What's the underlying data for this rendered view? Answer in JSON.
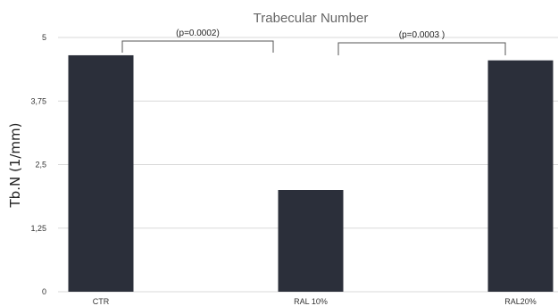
{
  "chart_data": {
    "type": "bar",
    "title": "Trabecular Number",
    "xlabel": "",
    "ylabel": "Tb.N  (1/mm)",
    "categories": [
      "CTR",
      "RAL 10%",
      "RAL20%"
    ],
    "values": [
      4.65,
      2.0,
      4.55
    ],
    "ylim": [
      0,
      5
    ],
    "yticks": [
      0,
      1.25,
      2.5,
      3.75,
      5
    ],
    "ytick_labels": [
      "0",
      "1,25",
      "2,5",
      "3,75",
      "5"
    ],
    "grid": true,
    "legend": "none",
    "bar_color": "#2b2f3a",
    "annotations": [
      {
        "text": "(p=0.0002)",
        "from": 0,
        "to": 1
      },
      {
        "text": "(p=0.0003 )",
        "from": 1,
        "to": 2
      }
    ]
  }
}
